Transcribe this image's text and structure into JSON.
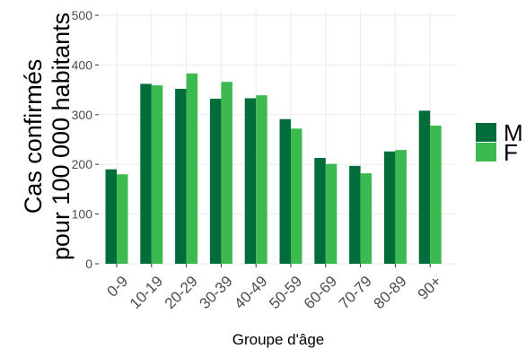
{
  "chart_data": {
    "type": "bar",
    "categories": [
      "0-9",
      "10-19",
      "20-29",
      "30-39",
      "40-49",
      "50-59",
      "60-69",
      "70-79",
      "80-89",
      "90+"
    ],
    "series": [
      {
        "name": "M",
        "color": "#006d3b",
        "values": [
          190,
          362,
          352,
          332,
          333,
          291,
          213,
          197,
          226,
          308
        ]
      },
      {
        "name": "F",
        "color": "#3cba4f",
        "values": [
          180,
          359,
          383,
          366,
          339,
          272,
          201,
          182,
          229,
          278
        ]
      }
    ],
    "title": "",
    "xlabel": "Groupe d'âge",
    "ylabel_line1": "Cas confirmés",
    "ylabel_line2": "pour 100 000 habitants",
    "ylim": [
      0,
      500
    ],
    "yticks": [
      0,
      100,
      200,
      300,
      400,
      500
    ],
    "grid": true,
    "legend_position": "right"
  }
}
